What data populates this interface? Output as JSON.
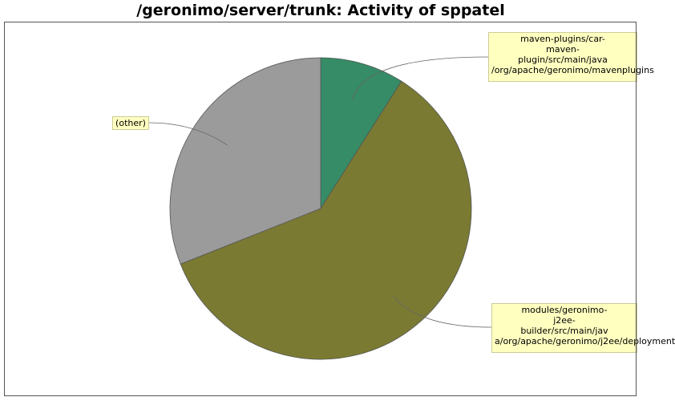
{
  "title": "/geronimo/server/trunk: Activity of sppatel",
  "chart_data": {
    "type": "pie",
    "title": "/geronimo/server/trunk: Activity of sppatel",
    "slices": [
      {
        "label": "maven-plugins/car-maven-plugin/src/main/java/org/apache/geronimo/mavenplugins",
        "value": 9,
        "color": "#358c66"
      },
      {
        "label": "modules/geronimo-j2ee-builder/src/main/java/org/apache/geronimo/j2ee/deployment",
        "value": 60,
        "color": "#7a7a33"
      },
      {
        "label": "(other)",
        "value": 31,
        "color": "#9b9b9b"
      }
    ]
  },
  "labels": {
    "slice0": "maven-plugins/car-\nmaven-\nplugin/src/main/java\n/org/apache/geronimo/mavenplugins",
    "slice1": "modules/geronimo-\nj2ee-\nbuilder/src/main/jav\na/org/apache/geronimo/j2ee/deployment",
    "slice2": "(other)"
  }
}
